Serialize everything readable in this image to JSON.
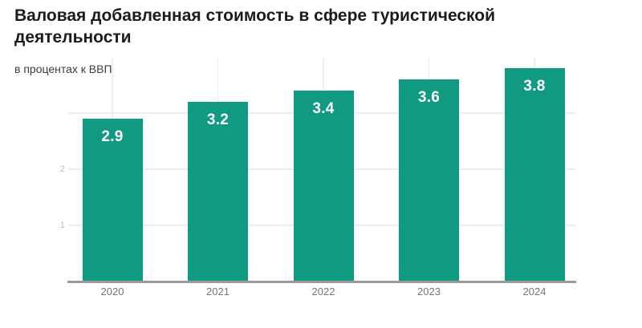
{
  "chart_data": {
    "type": "bar",
    "title": "Валовая добавленная стоимость в сфере туристической деятельности",
    "subtitle": "в процентах к ВВП",
    "categories": [
      "2020",
      "2021",
      "2022",
      "2023",
      "2024"
    ],
    "values": [
      2.9,
      3.2,
      3.4,
      3.6,
      3.8
    ],
    "bar_labels": [
      "2.9",
      "3.2",
      "3.4",
      "3.6",
      "3.8"
    ],
    "xlabel": "",
    "ylabel": "",
    "ylim": [
      0,
      4
    ],
    "y_gridline_values": [
      1,
      2,
      3
    ],
    "y_ticks": [
      {
        "value": 1,
        "label": "1"
      },
      {
        "value": 2,
        "label": "2"
      }
    ],
    "grid": true,
    "legend": "none"
  },
  "colors": {
    "bar": "#0f9a81",
    "bar_label": "#ffffff",
    "title": "#1c1c1c",
    "subtitle": "#3d3d3d",
    "axis_line": "#9a9a9a",
    "h_gridline": "#ececec",
    "v_gridline": "#efefef",
    "x_tick_label": "#757575",
    "y_tick_label": "#bdbdbd",
    "background": "#ffffff"
  }
}
